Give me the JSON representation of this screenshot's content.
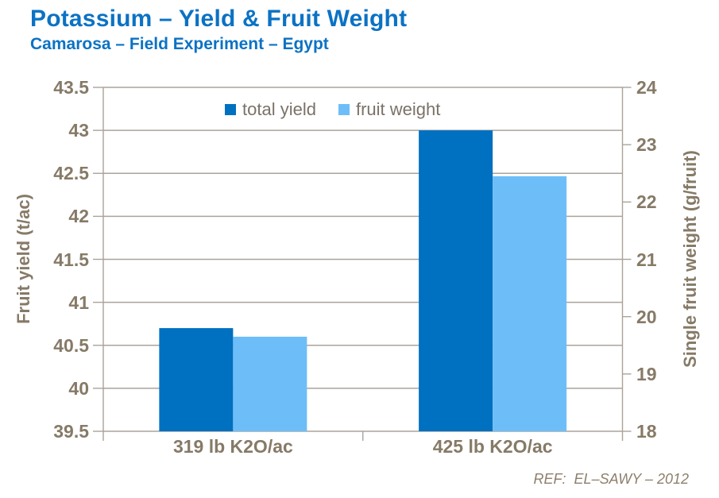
{
  "header": {
    "title": "Potassium – Yield & Fruit Weight",
    "subtitle": "Camarosa – Field Experiment – Egypt"
  },
  "footer": {
    "ref": "REF:  EL–SAWY – 2012"
  },
  "colors": {
    "title_blue": "#0B72C4",
    "dark_bar": "#0070C0",
    "light_bar": "#6DBEF8",
    "axis_text": "#867A67",
    "legend_text": "#7A7268",
    "ref_text": "#8D7F6C",
    "line": "#AAA39B"
  },
  "chart_data": {
    "type": "bar",
    "categories": [
      "319 lb K2O/ac",
      "425 lb K2O/ac"
    ],
    "series": [
      {
        "name": "total yield",
        "axis": "left",
        "color": "#0070C0",
        "values": [
          40.7,
          43.0
        ]
      },
      {
        "name": "fruit weight",
        "axis": "right",
        "color": "#6DBEF8",
        "values": [
          19.65,
          22.45
        ]
      }
    ],
    "left_axis": {
      "label": "Fruit yield (t/ac)",
      "min": 39.5,
      "max": 43.5,
      "step": 0.5,
      "ticks": [
        "43.5",
        "43",
        "42.5",
        "42",
        "41.5",
        "41",
        "40.5",
        "40",
        "39.5"
      ]
    },
    "right_axis": {
      "label": "Single fruit weight (g/fruit)",
      "min": 18,
      "max": 24,
      "step": 1,
      "ticks": [
        "24",
        "23",
        "22",
        "21",
        "20",
        "19",
        "18"
      ]
    },
    "legend_position": "top-center-inside",
    "grid": true
  }
}
